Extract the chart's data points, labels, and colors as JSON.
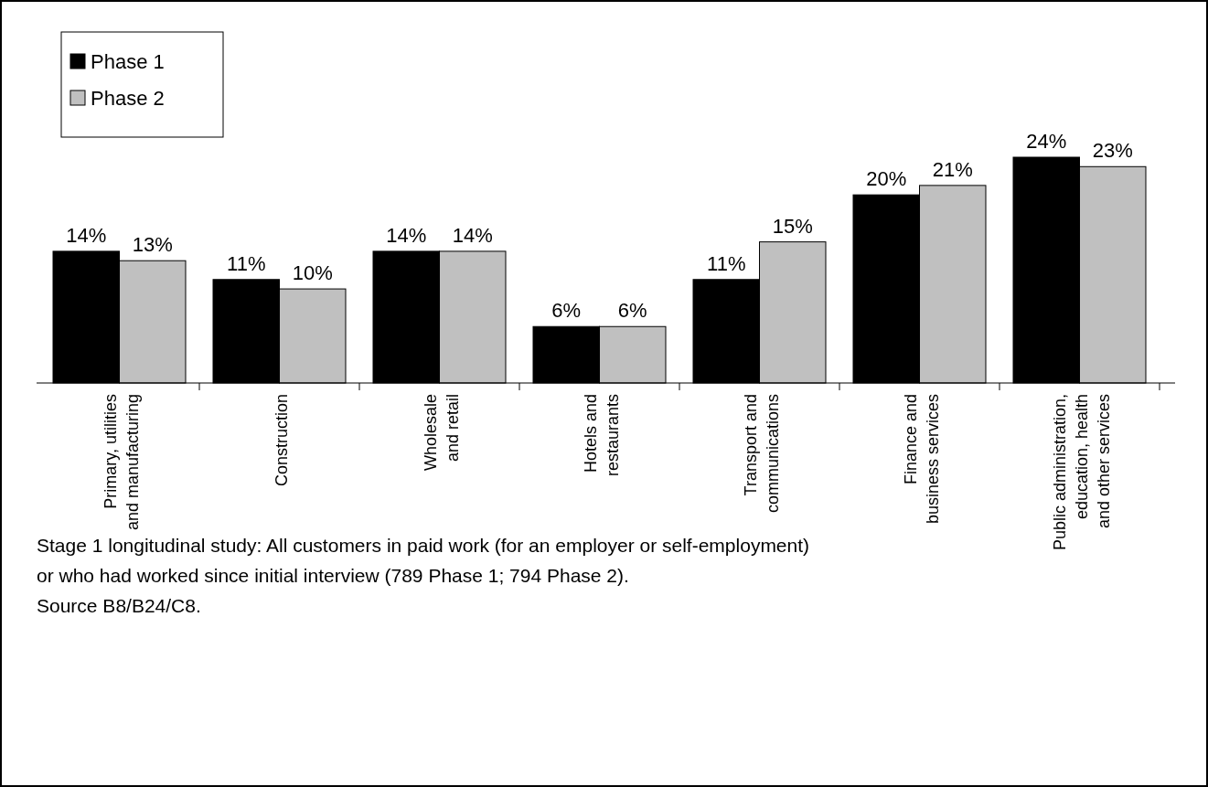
{
  "chart_data": {
    "type": "bar",
    "categories": [
      "Primary, utilities\nand manufacturing",
      "Construction",
      "Wholesale\nand retail",
      "Hotels and\nrestaurants",
      "Transport and\ncommunications",
      "Finance and\nbusiness services",
      "Public administration,\neducation, health\nand other services"
    ],
    "series": [
      {
        "name": "Phase 1",
        "color": "#000000",
        "values": [
          14,
          11,
          14,
          6,
          11,
          20,
          24
        ],
        "value_labels": [
          "14%",
          "11%",
          "14%",
          "6%",
          "11%",
          "20%",
          "24%"
        ]
      },
      {
        "name": "Phase 2",
        "color": "#c0c0c0",
        "values": [
          13,
          10,
          14,
          6,
          15,
          21,
          23
        ],
        "value_labels": [
          "13%",
          "10%",
          "14%",
          "6%",
          "15%",
          "21%",
          "23%"
        ]
      }
    ],
    "legend": "top left",
    "annotations": [
      "Stage 1 longitudinal study: All customers in paid work (for an employer or self-employment)",
      "or who had worked since initial interview (789 Phase 1; 794 Phase 2).",
      "Source B8/B24/C8."
    ]
  }
}
